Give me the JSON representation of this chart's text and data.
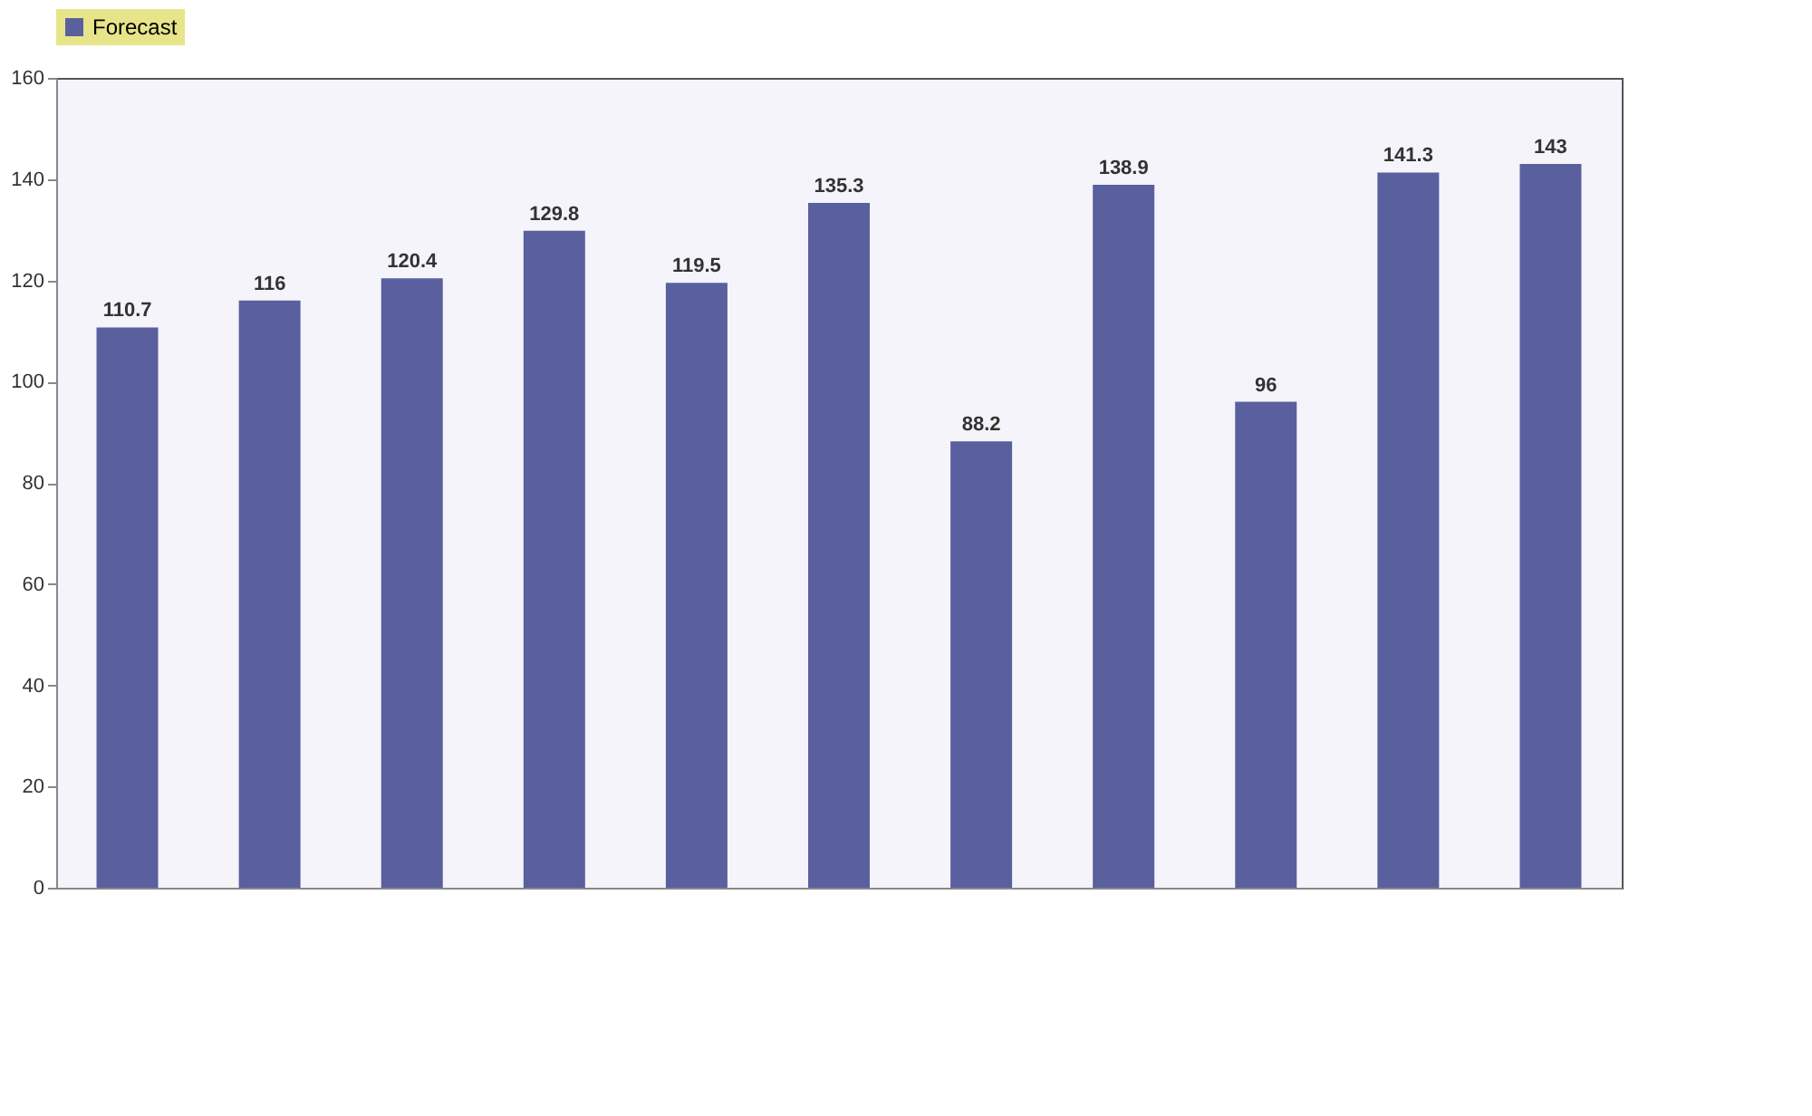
{
  "chart_data": {
    "type": "bar",
    "categories": [
      null,
      null,
      null,
      null,
      null,
      null,
      null,
      null,
      null,
      null,
      null
    ],
    "series": [
      {
        "name": "Forecast",
        "color": "#5a5f9e",
        "values": [
          110.7,
          116,
          120.4,
          129.8,
          119.5,
          135.3,
          88.2,
          138.9,
          96,
          141.3,
          143
        ]
      }
    ],
    "ylim": [
      0,
      160
    ],
    "yticks": [
      0,
      20,
      40,
      60,
      80,
      100,
      120,
      140,
      160
    ],
    "data_labels": true,
    "legend": "top",
    "grid": false
  }
}
